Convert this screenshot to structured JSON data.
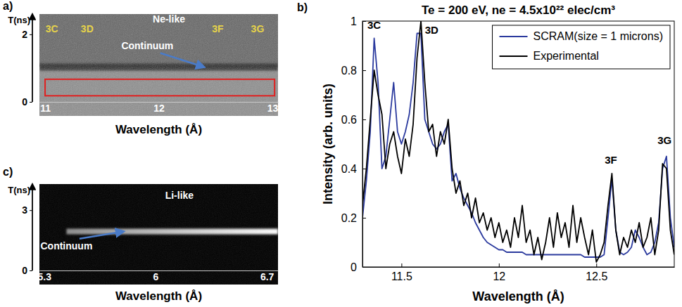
{
  "chart_data": [
    {
      "type": "streak_image",
      "panel_label": "a)",
      "x_label": "Wavelength (Å)",
      "y_label": "T(ns)",
      "color": "#8e8e8e",
      "xlim": [
        10.95,
        13.05
      ],
      "xticks": [
        11,
        12,
        13
      ],
      "ylim": [
        0,
        2.6
      ],
      "yticks": [
        0,
        2
      ],
      "annotations": [
        {
          "text": "3C",
          "x": 11.06,
          "y": 2.05,
          "color": "#e6d34a"
        },
        {
          "text": "3D",
          "x": 11.37,
          "y": 2.05,
          "color": "#e6d34a"
        },
        {
          "text": "Ne-like",
          "x": 12.09,
          "y": 2.35,
          "color": "#ffffff"
        },
        {
          "text": "3F",
          "x": 12.52,
          "y": 2.05,
          "color": "#e6d34a"
        },
        {
          "text": "3G",
          "x": 12.87,
          "y": 2.05,
          "color": "#e6d34a"
        },
        {
          "text": "Continuum",
          "x": 11.9,
          "y": 1.55,
          "color": "#ffffff",
          "arrow_x": 12.4,
          "arrow_y": 1.03
        }
      ],
      "region": {
        "x": [
          11.0,
          13.02
        ],
        "y": [
          0.18,
          0.67
        ],
        "color": "#e02020"
      }
    },
    {
      "type": "line",
      "panel_label": "b)",
      "title": "Te = 200 eV, ne = 4.5x10²² elec/cm³",
      "x_label": "Wavelength (Å)",
      "y_label": "Intensity (arb. units)",
      "x": [
        11.3,
        11.32,
        11.34,
        11.36,
        11.38,
        11.4,
        11.42,
        11.44,
        11.46,
        11.48,
        11.5,
        11.52,
        11.54,
        11.56,
        11.58,
        11.6,
        11.62,
        11.64,
        11.66,
        11.68,
        11.7,
        11.72,
        11.74,
        11.76,
        11.78,
        11.8,
        11.82,
        11.84,
        11.86,
        11.88,
        11.9,
        11.92,
        11.94,
        11.96,
        11.98,
        12,
        12.02,
        12.04,
        12.06,
        12.08,
        12.1,
        12.12,
        12.14,
        12.16,
        12.18,
        12.2,
        12.22,
        12.24,
        12.26,
        12.28,
        12.3,
        12.32,
        12.34,
        12.36,
        12.38,
        12.4,
        12.42,
        12.44,
        12.46,
        12.48,
        12.5,
        12.52,
        12.54,
        12.56,
        12.58,
        12.6,
        12.62,
        12.64,
        12.66,
        12.68,
        12.7,
        12.72,
        12.74,
        12.76,
        12.78,
        12.8,
        12.82,
        12.84,
        12.86,
        12.88,
        12.9
      ],
      "series": [
        {
          "name": "SCRAM(size = 1 microns)",
          "color": "#2b3a9e",
          "values": [
            0.2,
            0.35,
            0.55,
            0.93,
            0.75,
            0.4,
            0.45,
            0.6,
            0.75,
            0.55,
            0.5,
            0.55,
            0.62,
            0.75,
            0.95,
            0.95,
            0.6,
            0.55,
            0.5,
            0.48,
            0.5,
            0.55,
            0.58,
            0.35,
            0.38,
            0.32,
            0.28,
            0.25,
            0.22,
            0.18,
            0.15,
            0.12,
            0.1,
            0.09,
            0.08,
            0.07,
            0.07,
            0.06,
            0.06,
            0.06,
            0.06,
            0.06,
            0.05,
            0.05,
            0.05,
            0.05,
            0.05,
            0.05,
            0.05,
            0.05,
            0.05,
            0.05,
            0.05,
            0.05,
            0.05,
            0.05,
            0.05,
            0.04,
            0.04,
            0.04,
            0.04,
            0.04,
            0.05,
            0.2,
            0.36,
            0.15,
            0.06,
            0.05,
            0.06,
            0.08,
            0.15,
            0.12,
            0.08,
            0.05,
            0.06,
            0.1,
            0.18,
            0.4,
            0.45,
            0.2,
            0.08
          ]
        },
        {
          "name": "Experimental",
          "color": "#000000",
          "values": [
            0.25,
            0.4,
            0.6,
            0.8,
            0.7,
            0.62,
            0.4,
            0.5,
            0.55,
            0.45,
            0.38,
            0.52,
            0.45,
            0.58,
            0.85,
            1.0,
            0.75,
            0.55,
            0.58,
            0.45,
            0.55,
            0.5,
            0.6,
            0.4,
            0.3,
            0.35,
            0.25,
            0.3,
            0.2,
            0.28,
            0.18,
            0.22,
            0.15,
            0.2,
            0.12,
            0.18,
            0.1,
            0.15,
            0.08,
            0.2,
            0.12,
            0.25,
            0.1,
            0.15,
            0.05,
            0.12,
            0.03,
            0.1,
            0.2,
            0.08,
            0.22,
            0.12,
            0.18,
            0.08,
            0.25,
            0.1,
            0.2,
            0.12,
            0.05,
            0.15,
            0.02,
            0.05,
            0.1,
            0.25,
            0.38,
            0.15,
            0.05,
            0.12,
            0.08,
            0.15,
            0.1,
            0.18,
            0.08,
            0.12,
            0.2,
            0.05,
            0.15,
            0.42,
            0.4,
            0.15,
            0.05
          ]
        }
      ],
      "xlim": [
        11.3,
        12.9
      ],
      "xticks": [
        11.5,
        12,
        12.5
      ],
      "ylim": [
        0,
        1
      ],
      "yticks": [
        0,
        0.2,
        0.4,
        0.6,
        0.8,
        1
      ],
      "legend": "upper right",
      "annotations": [
        {
          "text": "3C",
          "x": 11.36,
          "y": 0.97
        },
        {
          "text": "3D",
          "x": 11.655,
          "y": 0.95
        },
        {
          "text": "3F",
          "x": 12.575,
          "y": 0.42
        },
        {
          "text": "3G",
          "x": 12.85,
          "y": 0.5
        }
      ]
    },
    {
      "type": "streak_image",
      "panel_label": "c)",
      "x_label": "Wavelength (Å)",
      "y_label": "T(ns)",
      "color": "#000000",
      "xlim": [
        5.27,
        6.77
      ],
      "xticks": [
        5.3,
        6,
        6.7
      ],
      "ylim": [
        0,
        4.3
      ],
      "yticks": [
        0,
        3
      ],
      "annotations": [
        {
          "text": "Li-like",
          "x": 6.15,
          "y": 3.55,
          "color": "#ffffff"
        },
        {
          "text": "Continuum",
          "x": 5.44,
          "y": 1.06,
          "color": "#ffffff",
          "arrow_x": 5.8,
          "arrow_y": 1.94
        }
      ]
    }
  ]
}
